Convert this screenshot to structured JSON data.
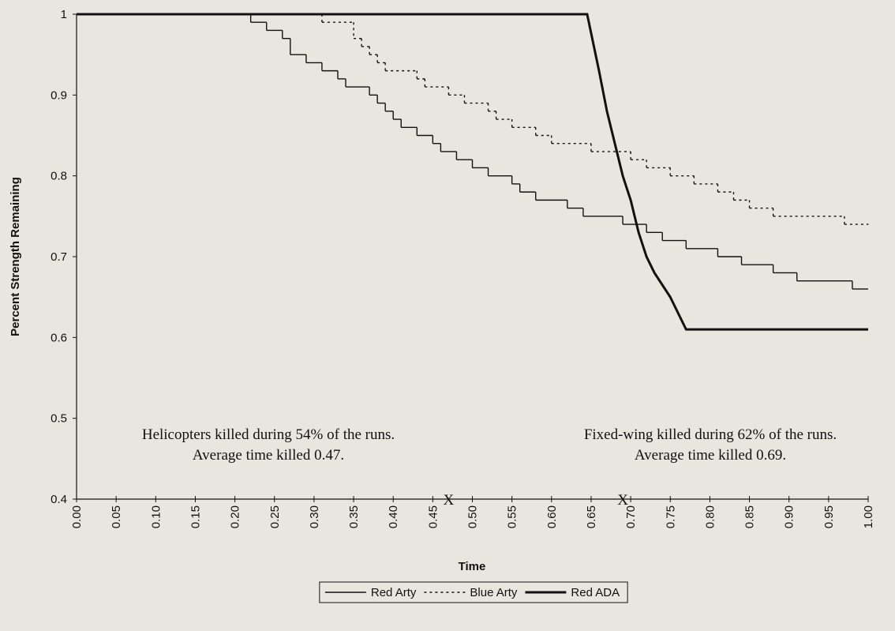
{
  "chart_data": {
    "type": "line",
    "x_label": "Time",
    "y_label": "Percent Strength Remaining",
    "xlim": [
      0,
      1
    ],
    "ylim": [
      0.4,
      1
    ],
    "xticks": [
      {
        "value": 0,
        "label": "0.00"
      },
      {
        "value": 0.05,
        "label": "0.05"
      },
      {
        "value": 0.1,
        "label": "0.10"
      },
      {
        "value": 0.15,
        "label": "0.15"
      },
      {
        "value": 0.2,
        "label": "0.20"
      },
      {
        "value": 0.25,
        "label": "0.25"
      },
      {
        "value": 0.3,
        "label": "0.30"
      },
      {
        "value": 0.35,
        "label": "0.35"
      },
      {
        "value": 0.4,
        "label": "0.40"
      },
      {
        "value": 0.45,
        "label": "0.45"
      },
      {
        "value": 0.5,
        "label": "0.50"
      },
      {
        "value": 0.55,
        "label": "0.55"
      },
      {
        "value": 0.6,
        "label": "0.60"
      },
      {
        "value": 0.65,
        "label": "0.65"
      },
      {
        "value": 0.7,
        "label": "0.70"
      },
      {
        "value": 0.75,
        "label": "0.75"
      },
      {
        "value": 0.8,
        "label": "0.80"
      },
      {
        "value": 0.85,
        "label": "0.85"
      },
      {
        "value": 0.9,
        "label": "0.90"
      },
      {
        "value": 0.95,
        "label": "0.95"
      },
      {
        "value": 1,
        "label": "1.00"
      }
    ],
    "yticks": [
      0.4,
      0.5,
      0.6,
      0.7,
      0.8,
      0.9,
      1
    ],
    "legend": "bottom",
    "series": [
      {
        "name": "Red Arty",
        "color": "#111111",
        "style": "solid",
        "step": true,
        "x": [
          0,
          0.22,
          0.24,
          0.26,
          0.27,
          0.29,
          0.31,
          0.33,
          0.34,
          0.37,
          0.38,
          0.39,
          0.4,
          0.41,
          0.43,
          0.45,
          0.46,
          0.48,
          0.5,
          0.52,
          0.55,
          0.56,
          0.58,
          0.62,
          0.64,
          0.69,
          0.72,
          0.74,
          0.77,
          0.81,
          0.84,
          0.88,
          0.91,
          0.98,
          1
        ],
        "values": [
          1,
          0.99,
          0.98,
          0.97,
          0.95,
          0.94,
          0.93,
          0.92,
          0.91,
          0.9,
          0.89,
          0.88,
          0.87,
          0.86,
          0.85,
          0.84,
          0.83,
          0.82,
          0.81,
          0.8,
          0.79,
          0.78,
          0.77,
          0.76,
          0.75,
          0.74,
          0.73,
          0.72,
          0.71,
          0.7,
          0.69,
          0.68,
          0.67,
          0.66,
          0.66
        ]
      },
      {
        "name": "Blue Arty",
        "color": "#111111",
        "style": "dashed",
        "step": true,
        "x": [
          0,
          0.31,
          0.35,
          0.36,
          0.37,
          0.38,
          0.39,
          0.43,
          0.44,
          0.47,
          0.49,
          0.52,
          0.53,
          0.55,
          0.58,
          0.6,
          0.65,
          0.7,
          0.72,
          0.75,
          0.78,
          0.81,
          0.83,
          0.85,
          0.88,
          0.97,
          1
        ],
        "values": [
          1,
          0.99,
          0.97,
          0.96,
          0.95,
          0.94,
          0.93,
          0.92,
          0.91,
          0.9,
          0.89,
          0.88,
          0.87,
          0.86,
          0.85,
          0.84,
          0.83,
          0.82,
          0.81,
          0.8,
          0.79,
          0.78,
          0.77,
          0.76,
          0.75,
          0.74,
          0.74
        ]
      },
      {
        "name": "Red ADA",
        "color": "#111111",
        "style": "thick",
        "step": false,
        "x": [
          0,
          0.645,
          0.66,
          0.67,
          0.68,
          0.69,
          0.7,
          0.71,
          0.72,
          0.73,
          0.75,
          0.76,
          0.77,
          1
        ],
        "values": [
          1,
          1,
          0.93,
          0.88,
          0.84,
          0.8,
          0.77,
          0.73,
          0.7,
          0.68,
          0.65,
          0.63,
          0.61,
          0.61
        ]
      }
    ],
    "annotations": [
      {
        "lines": [
          "Helicopters killed during 54% of the runs.",
          "Average time killed 0.47."
        ]
      },
      {
        "lines": [
          "Fixed-wing killed during 62% of the runs.",
          "Average time killed 0.69."
        ]
      }
    ],
    "markers": [
      {
        "x": 0.47,
        "label": "X"
      },
      {
        "x": 0.69,
        "label": "X"
      }
    ]
  }
}
